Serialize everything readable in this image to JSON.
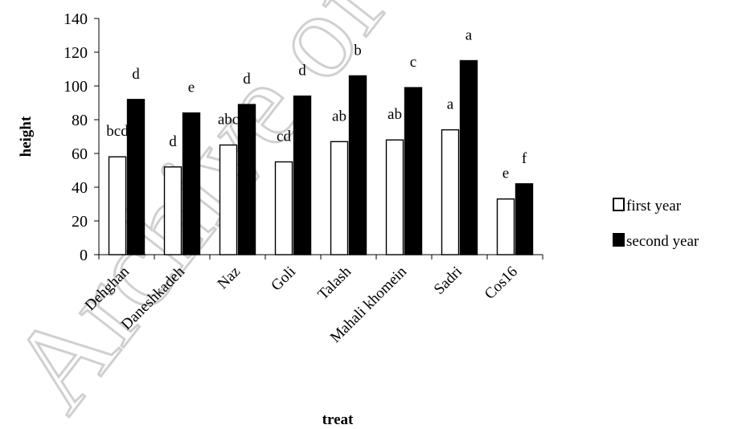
{
  "watermark": "Archive of SID",
  "chart_data": {
    "type": "bar",
    "categories": [
      "Dehghan",
      "Daneshkadeh",
      "Naz",
      "Goli",
      "Talash",
      "Mahali khomein",
      "Sadri",
      "Cos16"
    ],
    "series": [
      {
        "name": "first year",
        "color": "#ffffff",
        "values": [
          58,
          52,
          65,
          55,
          67,
          68,
          74,
          33
        ],
        "labels": [
          "bcd",
          "d",
          "abc",
          "cd",
          "ab",
          "ab",
          "a",
          "e"
        ]
      },
      {
        "name": "second year",
        "color": "#000000",
        "values": [
          92,
          84,
          89,
          94,
          106,
          99,
          115,
          42
        ],
        "labels": [
          "d",
          "e",
          "d",
          "d",
          "b",
          "c",
          "a",
          "f"
        ]
      }
    ],
    "title": "",
    "xlabel": "treat",
    "ylabel": "height",
    "ylim": [
      0,
      140
    ],
    "yticks": [
      0,
      20,
      40,
      60,
      80,
      100,
      120,
      140
    ],
    "grid": false,
    "legend_position": "right"
  }
}
